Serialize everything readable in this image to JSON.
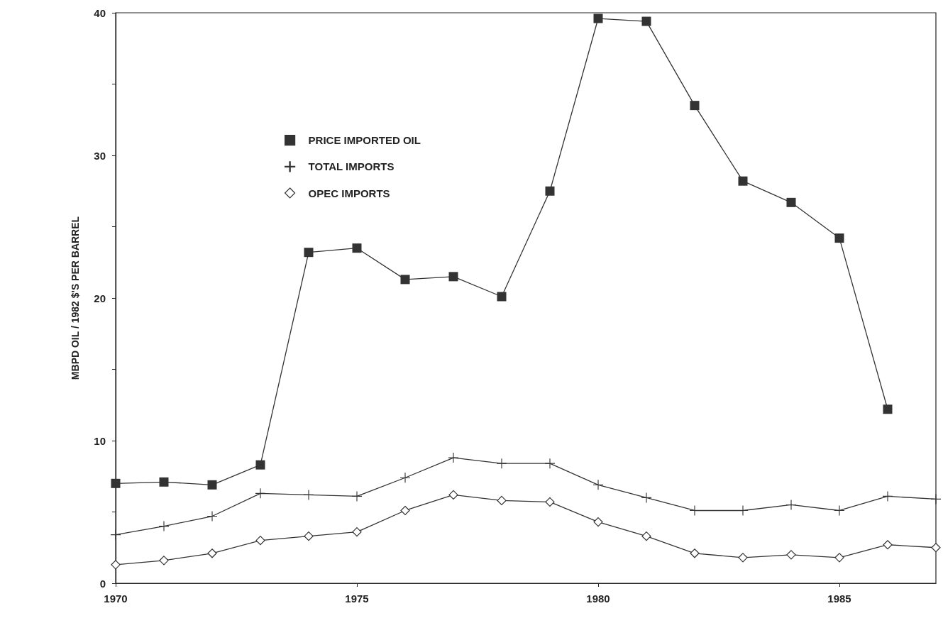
{
  "chart_data": {
    "type": "line",
    "ylabel": "MBPD OIL / 1982 $'S PER BARREL",
    "xlim": [
      1970,
      1987
    ],
    "xticks": [
      1970,
      1975,
      1980,
      1985
    ],
    "ylim": [
      0,
      40
    ],
    "yticks": [
      0,
      {
        "value": 5,
        "label": null
      },
      10,
      {
        "value": 15,
        "label": null
      },
      20,
      {
        "value": 25,
        "label": null
      },
      30,
      {
        "value": 35,
        "label": null
      },
      40
    ],
    "grid": false,
    "legend": "top left",
    "line_style": "solid",
    "series": [
      {
        "name": "PRICE IMPORTED OIL",
        "color": "#333333",
        "marker": "square",
        "x": [
          1970,
          1971,
          1972,
          1973,
          1974,
          1975,
          1976,
          1977,
          1978,
          1979,
          1980,
          1981,
          1982,
          1983,
          1984,
          1985,
          1986
        ],
        "values": [
          7.0,
          7.1,
          6.9,
          8.3,
          23.2,
          23.5,
          21.3,
          21.5,
          20.1,
          27.5,
          39.6,
          39.4,
          33.5,
          28.2,
          26.7,
          24.2,
          12.2
        ]
      },
      {
        "name": "TOTAL IMPORTS",
        "color": "#333333",
        "marker": "cross",
        "x": [
          1970,
          1971,
          1972,
          1973,
          1974,
          1975,
          1976,
          1977,
          1978,
          1979,
          1980,
          1981,
          1982,
          1983,
          1984,
          1985,
          1986,
          1987
        ],
        "values": [
          3.4,
          4.0,
          4.7,
          6.3,
          6.2,
          6.1,
          7.4,
          8.8,
          8.4,
          8.4,
          6.9,
          6.0,
          5.1,
          5.1,
          5.5,
          5.1,
          6.1,
          5.9
        ]
      },
      {
        "name": "OPEC IMPORTS",
        "color": "#333333",
        "marker": "diamond",
        "x": [
          1970,
          1971,
          1972,
          1973,
          1974,
          1975,
          1976,
          1977,
          1978,
          1979,
          1980,
          1981,
          1982,
          1983,
          1984,
          1985,
          1986,
          1987
        ],
        "values": [
          1.3,
          1.6,
          2.1,
          3.0,
          3.3,
          3.6,
          5.1,
          6.2,
          5.8,
          5.7,
          4.3,
          3.3,
          2.1,
          1.8,
          2.0,
          1.8,
          2.7,
          2.5
        ]
      }
    ]
  }
}
